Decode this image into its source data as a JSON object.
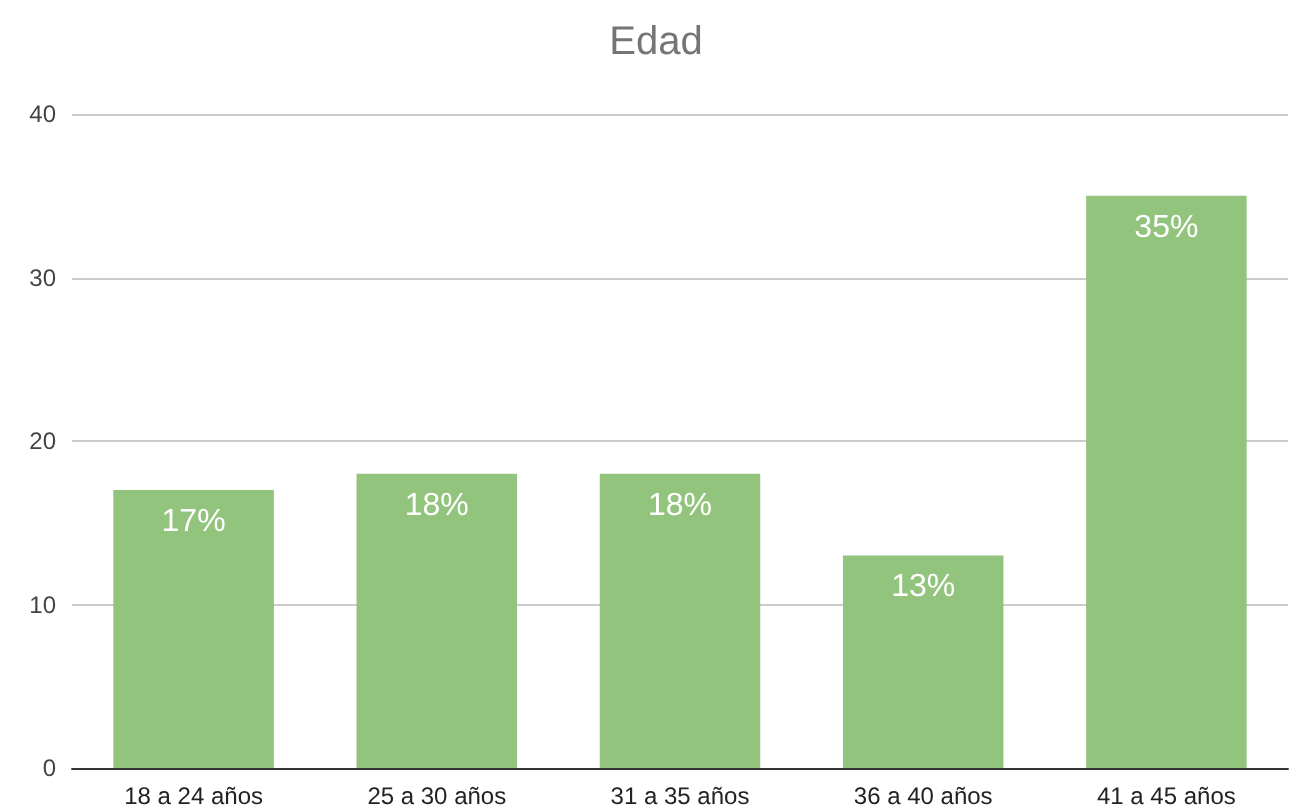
{
  "chart_data": {
    "type": "bar",
    "title": "Edad",
    "categories": [
      "18 a 24 años",
      "25 a 30 años",
      "31 a 35 años",
      "36 a 40 años",
      "41 a 45 años"
    ],
    "values": [
      17,
      18,
      18,
      13,
      35
    ],
    "value_labels": [
      "17%",
      "18%",
      "18%",
      "13%",
      "35%"
    ],
    "color": "#93c47d",
    "ylim": [
      0,
      40
    ],
    "yticks": [
      0,
      10,
      20,
      30,
      40
    ],
    "grid": "y"
  }
}
